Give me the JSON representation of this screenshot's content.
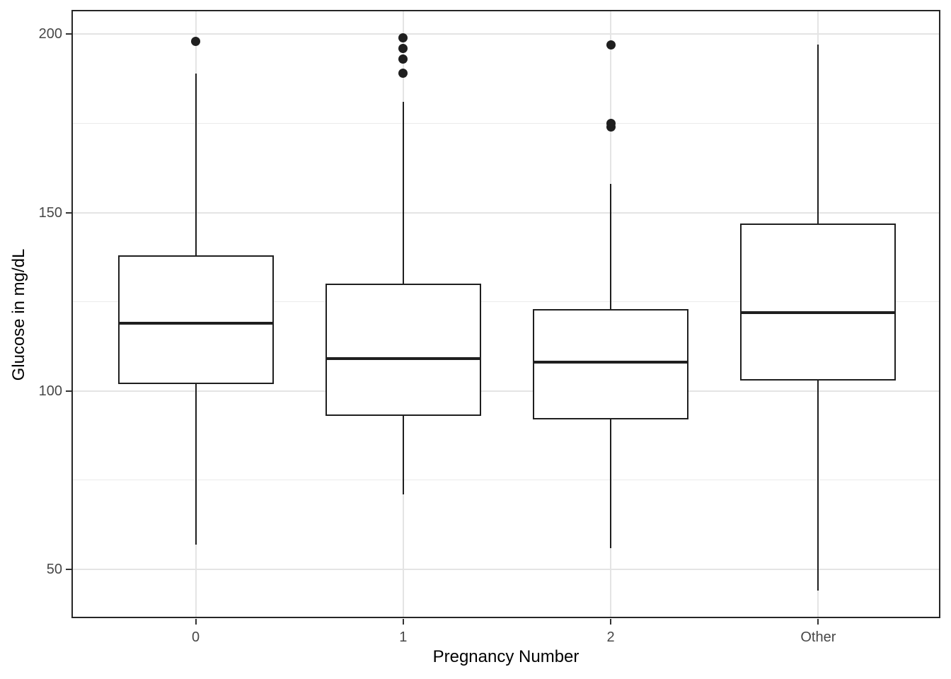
{
  "chart_data": {
    "type": "boxplot",
    "title": "",
    "xlabel": "Pregnancy Number",
    "ylabel": "Glucose in mg/dL",
    "categories": [
      "0",
      "1",
      "2",
      "Other"
    ],
    "y_axis": {
      "major_ticks": [
        50,
        100,
        150,
        200
      ],
      "minor_gridlines": [
        75,
        125,
        175
      ],
      "range": [
        36.8,
        206.4
      ]
    },
    "series": [
      {
        "category": "0",
        "min": 57,
        "q1": 102,
        "median": 119,
        "q3": 138,
        "max": 189,
        "outliers": [
          198
        ]
      },
      {
        "category": "1",
        "min": 71,
        "q1": 93,
        "median": 109,
        "q3": 130,
        "max": 181,
        "outliers": [
          189,
          193,
          196,
          199
        ]
      },
      {
        "category": "2",
        "min": 56,
        "q1": 92,
        "median": 108,
        "q3": 123,
        "max": 158,
        "outliers": [
          174,
          175,
          197
        ]
      },
      {
        "category": "Other",
        "min": 44,
        "q1": 103,
        "median": 122,
        "q3": 147,
        "max": 197,
        "outliers": []
      }
    ],
    "grid": true,
    "legend": false,
    "style": "ggplot-theme-bw"
  },
  "colors": {
    "box_stroke": "#1f1f1f",
    "box_fill": "#ffffff",
    "outlier": "#1f1f1f",
    "panel_border": "#262626",
    "grid_major": "#e4e4e4",
    "grid_minor": "#ebebeb",
    "tick_label": "#474747",
    "axis_title": "#000000",
    "background": "#ffffff"
  }
}
